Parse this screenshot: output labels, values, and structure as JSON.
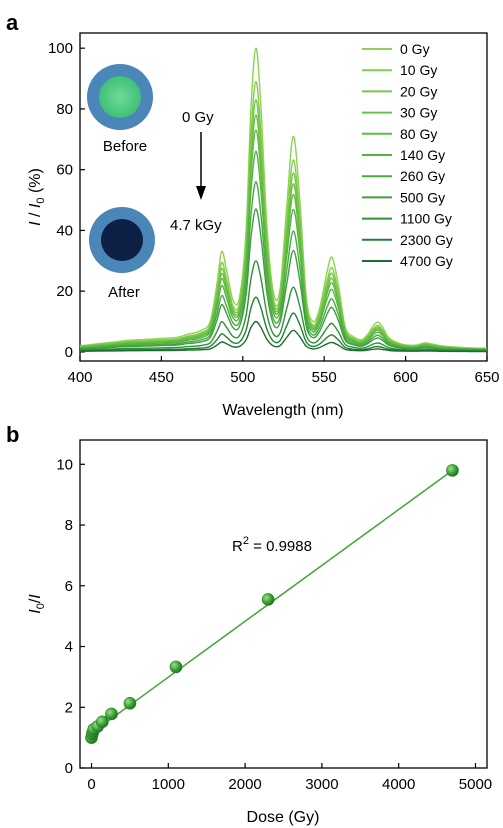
{
  "chart_data": [
    {
      "panel_label": "a",
      "type": "line",
      "xlabel": "Wavelength (nm)",
      "ylabel": "I / I0 (%)",
      "xlim": [
        400,
        650
      ],
      "ylim": [
        -3,
        105
      ],
      "xticks": [
        400,
        450,
        500,
        550,
        600,
        650
      ],
      "yticks": [
        0,
        20,
        40,
        60,
        80,
        100
      ],
      "x": [
        400,
        410,
        420,
        430,
        440,
        450,
        460,
        466,
        470,
        475,
        480,
        484,
        487,
        490,
        494,
        498,
        502,
        505,
        508,
        511,
        515,
        519,
        523,
        527,
        531,
        535,
        539,
        543,
        547,
        552,
        555,
        559,
        563,
        568,
        573,
        577,
        580,
        583,
        586,
        590,
        598,
        606,
        612,
        616,
        622,
        630,
        640,
        650
      ],
      "profile": [
        2.0,
        2.6,
        3.2,
        3.8,
        4.1,
        4.4,
        4.8,
        5.8,
        6.2,
        7.2,
        10,
        22,
        33,
        27,
        17,
        18,
        40,
        80,
        100,
        82,
        40,
        19,
        21,
        48,
        71,
        50,
        18,
        10,
        14,
        27,
        31,
        21,
        8,
        5,
        4,
        6,
        8.5,
        9.8,
        8,
        4.5,
        2.5,
        2.2,
        3.0,
        2.6,
        2.0,
        1.6,
        1.3,
        1.2
      ],
      "series": [
        {
          "name": "0 Gy",
          "scale": 1.0
        },
        {
          "name": "10 Gy",
          "scale": 0.89
        },
        {
          "name": "20 Gy",
          "scale": 0.83
        },
        {
          "name": "30 Gy",
          "scale": 0.78
        },
        {
          "name": "80 Gy",
          "scale": 0.73
        },
        {
          "name": "140 Gy",
          "scale": 0.66
        },
        {
          "name": "260 Gy",
          "scale": 0.56
        },
        {
          "name": "500 Gy",
          "scale": 0.47
        },
        {
          "name": "1100 Gy",
          "scale": 0.3
        },
        {
          "name": "2300 Gy",
          "scale": 0.18
        },
        {
          "name": "4700 Gy",
          "scale": 0.1
        }
      ],
      "colors": [
        "#8ed24f",
        "#82cd4b",
        "#76c748",
        "#6bc145",
        "#5fbb43",
        "#54b341",
        "#48aa40",
        "#3d9f3e",
        "#30903a",
        "#238036",
        "#1b6e30"
      ],
      "annotations": {
        "before_label": "Before",
        "after_label": "After",
        "start_dose": "0 Gy",
        "end_dose": "4.7 kGy"
      },
      "inset_colors": {
        "ring": "#4a86b8",
        "before_core": "#56cf86",
        "after_core": "#0d1f45"
      }
    },
    {
      "panel_label": "b",
      "type": "scatter",
      "xlabel": "Dose (Gy)",
      "ylabel": "I0/I",
      "xlim": [
        -150,
        5150
      ],
      "ylim": [
        0,
        10.8
      ],
      "xticks": [
        0,
        1000,
        2000,
        3000,
        4000,
        5000
      ],
      "yticks": [
        0,
        2,
        4,
        6,
        8,
        10
      ],
      "points": [
        {
          "x": 0,
          "y": 1.0
        },
        {
          "x": 10,
          "y": 1.12
        },
        {
          "x": 20,
          "y": 1.2
        },
        {
          "x": 30,
          "y": 1.28
        },
        {
          "x": 80,
          "y": 1.37
        },
        {
          "x": 140,
          "y": 1.52
        },
        {
          "x": 260,
          "y": 1.78
        },
        {
          "x": 500,
          "y": 2.13
        },
        {
          "x": 1100,
          "y": 3.33
        },
        {
          "x": 2300,
          "y": 5.55
        },
        {
          "x": 4700,
          "y": 9.8
        }
      ],
      "fit": {
        "x": [
          0,
          4700
        ],
        "y": [
          1.15,
          9.8
        ]
      },
      "r2_label": "R",
      "r2_sup": "2",
      "r2_value": " = 0.9988",
      "color": "#3fa535"
    }
  ]
}
